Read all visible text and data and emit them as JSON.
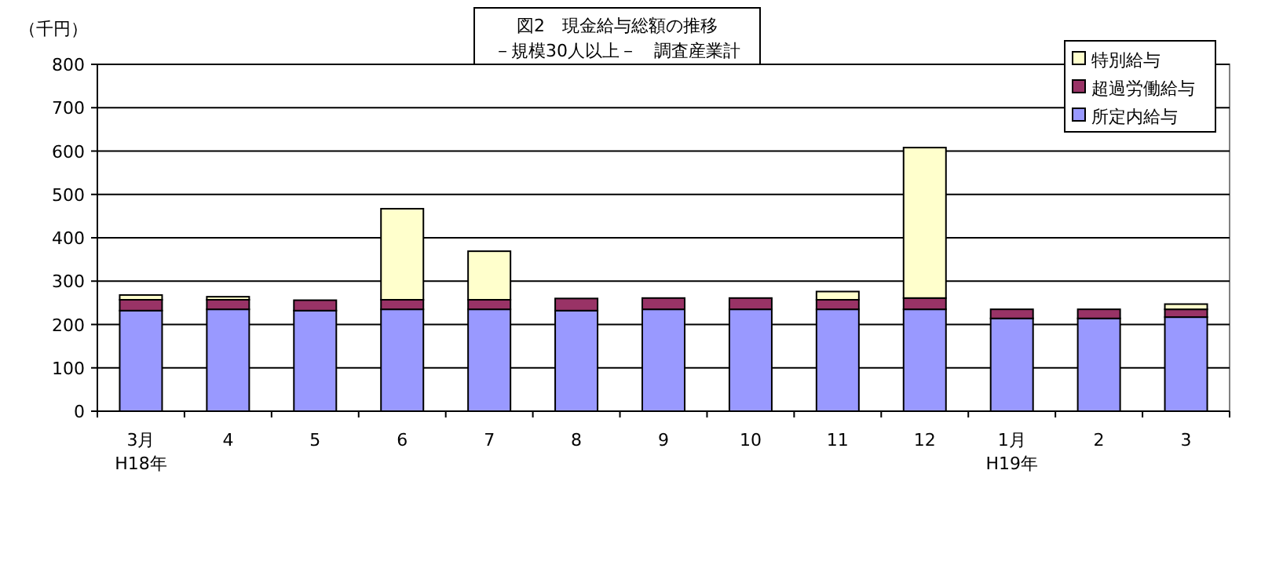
{
  "chart_data": {
    "type": "bar",
    "title": "図2　現金給与総額の推移",
    "subtitle": "－規模30人以上－　調査産業計",
    "ylabel": "（千円）",
    "stacked": true,
    "grid": "y",
    "legend": "top right",
    "categories": [
      "3月\nH18年",
      "4",
      "5",
      "6",
      "7",
      "8",
      "9",
      "10",
      "11",
      "12",
      "1月\nH19年",
      "2",
      "3"
    ],
    "ylim": [
      0,
      800
    ],
    "yticks": [
      0,
      100,
      200,
      300,
      400,
      500,
      600,
      700,
      800
    ],
    "series": [
      {
        "name": "所定内給与",
        "color": "#9999ff",
        "values": [
          232,
          235,
          232,
          235,
          235,
          232,
          235,
          235,
          235,
          235,
          214,
          214,
          217
        ]
      },
      {
        "name": "超過労働給与",
        "color": "#993366",
        "values": [
          25,
          22,
          24,
          22,
          22,
          28,
          26,
          26,
          22,
          26,
          21,
          21,
          18
        ]
      },
      {
        "name": "特別給与",
        "color": "#ffffcc",
        "values": [
          11,
          7,
          0,
          210,
          112,
          0,
          0,
          0,
          19,
          347,
          0,
          0,
          12
        ]
      }
    ]
  }
}
